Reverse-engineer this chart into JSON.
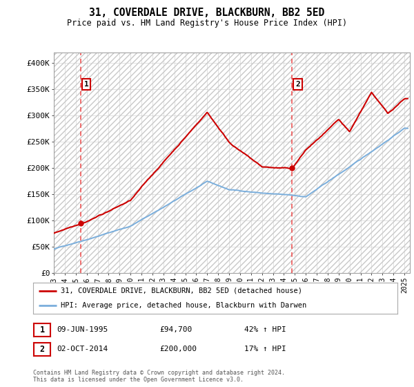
{
  "title": "31, COVERDALE DRIVE, BLACKBURN, BB2 5ED",
  "subtitle": "Price paid vs. HM Land Registry's House Price Index (HPI)",
  "ylim": [
    0,
    420000
  ],
  "yticks": [
    0,
    50000,
    100000,
    150000,
    200000,
    250000,
    300000,
    350000,
    400000
  ],
  "ytick_labels": [
    "£0",
    "£50K",
    "£100K",
    "£150K",
    "£200K",
    "£250K",
    "£300K",
    "£350K",
    "£400K"
  ],
  "xlim_start": 1993.0,
  "xlim_end": 2025.5,
  "sale1_date": 1995.44,
  "sale1_price": 94700,
  "sale1_label": "1",
  "sale2_date": 2014.75,
  "sale2_price": 200000,
  "sale2_label": "2",
  "hpi_line_color": "#7aaedc",
  "price_line_color": "#cc0000",
  "marker_color": "#cc0000",
  "vline_color": "#ee5555",
  "grid_color": "#cccccc",
  "legend_line1": "31, COVERDALE DRIVE, BLACKBURN, BB2 5ED (detached house)",
  "legend_line2": "HPI: Average price, detached house, Blackburn with Darwen",
  "info1_date": "09-JUN-1995",
  "info1_price": "£94,700",
  "info1_hpi": "42% ↑ HPI",
  "info2_date": "02-OCT-2014",
  "info2_price": "£200,000",
  "info2_hpi": "17% ↑ HPI",
  "footer": "Contains HM Land Registry data © Crown copyright and database right 2024.\nThis data is licensed under the Open Government Licence v3.0.",
  "background_color": "#ffffff"
}
